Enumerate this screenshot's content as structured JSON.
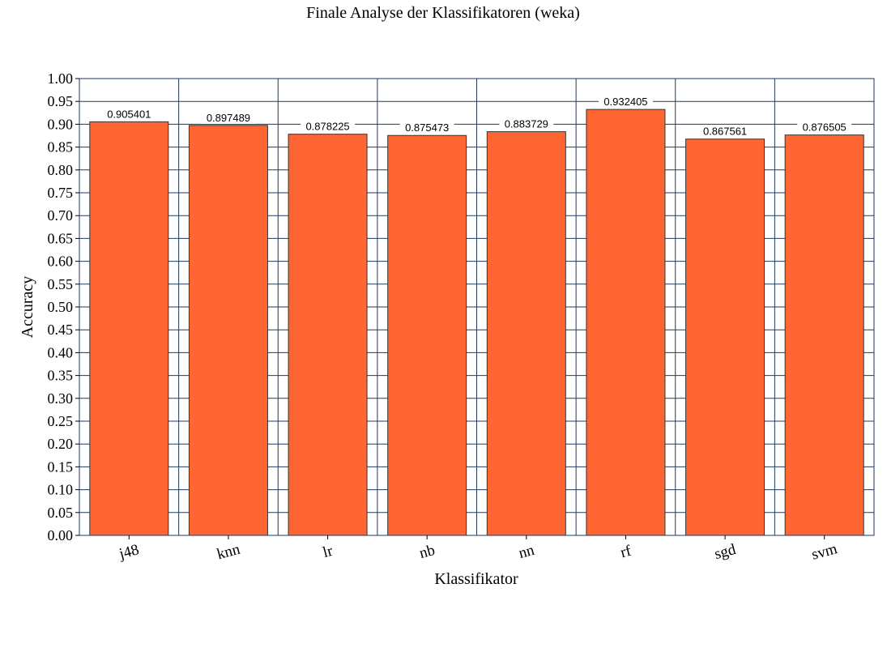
{
  "chart_data": {
    "type": "bar",
    "title": "Finale Analyse der Klassifikatoren (weka)",
    "xlabel": "Klassifikator",
    "ylabel": "Accuracy",
    "categories": [
      "j48",
      "knn",
      "lr",
      "nb",
      "nn",
      "rf",
      "sgd",
      "svm"
    ],
    "values": [
      0.905401,
      0.897489,
      0.878225,
      0.875473,
      0.883729,
      0.932405,
      0.867561,
      0.876505
    ],
    "value_labels": [
      "0.905401",
      "0.897489",
      "0.878225",
      "0.875473",
      "0.883729",
      "0.932405",
      "0.867561",
      "0.876505"
    ],
    "ylim": [
      0,
      1.0
    ],
    "yticks": [
      "0.00",
      "0.05",
      "0.10",
      "0.15",
      "0.20",
      "0.25",
      "0.30",
      "0.35",
      "0.40",
      "0.45",
      "0.50",
      "0.55",
      "0.60",
      "0.65",
      "0.70",
      "0.75",
      "0.80",
      "0.85",
      "0.90",
      "0.95",
      "1.00"
    ],
    "grid": true,
    "legend": "none",
    "colors": {
      "bar": "#ff6633",
      "bar_edge": "#333333",
      "grid": "#1f3a5f",
      "background": "#ffffff"
    }
  }
}
